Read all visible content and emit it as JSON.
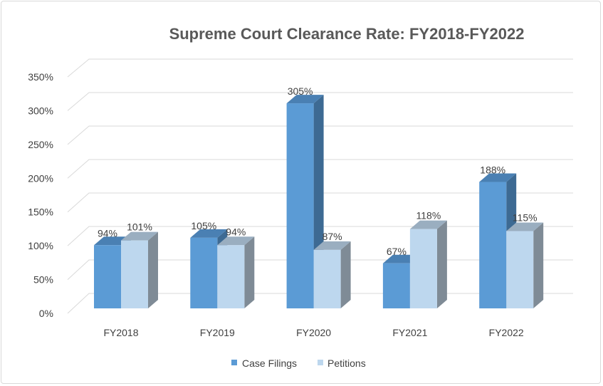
{
  "chart_data": {
    "type": "bar",
    "title": "Supreme Court Clearance Rate: FY2018-FY2022",
    "categories": [
      "FY2018",
      "FY2019",
      "FY2020",
      "FY2021",
      "FY2022"
    ],
    "series": [
      {
        "name": "Case Filings",
        "values": [
          94,
          105,
          305,
          67,
          188
        ],
        "labels": [
          "94%",
          "105%",
          "305%",
          "67%",
          "188%"
        ],
        "color": "#5B9BD5"
      },
      {
        "name": "Petitions",
        "values": [
          101,
          94,
          87,
          118,
          115
        ],
        "labels": [
          "101%",
          "94%",
          "87%",
          "118%",
          "115%"
        ],
        "color": "#BDD7EE"
      }
    ],
    "yticks": [
      "0%",
      "50%",
      "100%",
      "150%",
      "200%",
      "250%",
      "300%",
      "350%"
    ],
    "ylim": [
      0,
      350
    ],
    "grid": true,
    "legend": "bottom",
    "style": "3d-clustered-column"
  }
}
